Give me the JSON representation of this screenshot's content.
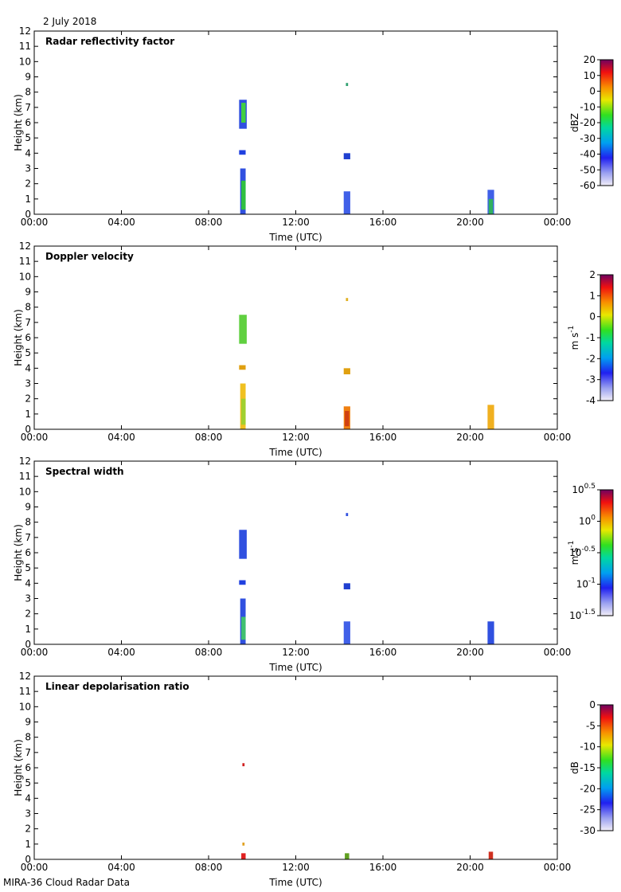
{
  "date_label": "2 July 2018",
  "footer_label": "MIRA-36 Cloud Radar Data",
  "chart_data": [
    {
      "type": "heatmap",
      "title": "Radar reflectivity factor",
      "xlabel": "Time (UTC)",
      "ylabel": "Height (km)",
      "xlim": [
        0,
        24
      ],
      "ylim": [
        0,
        12
      ],
      "x_tick_labels": [
        "00:00",
        "04:00",
        "08:00",
        "12:00",
        "16:00",
        "20:00",
        "00:00"
      ],
      "y_ticks": [
        0,
        1,
        2,
        3,
        4,
        5,
        6,
        7,
        8,
        9,
        10,
        11,
        12
      ],
      "colorbar": {
        "label": "dBZ",
        "ticks": [
          "20",
          "10",
          "0",
          "-10",
          "-20",
          "-30",
          "-40",
          "-50",
          "-60"
        ],
        "range": [
          -60,
          20
        ]
      },
      "echoes": [
        {
          "t": [
            9.45,
            9.7
          ],
          "h": [
            0.0,
            3.0
          ],
          "color": "#3050e0"
        },
        {
          "t": [
            9.5,
            9.7
          ],
          "h": [
            0.3,
            2.2
          ],
          "color": "#30c040"
        },
        {
          "t": [
            9.4,
            9.7
          ],
          "h": [
            3.9,
            4.2
          ],
          "color": "#2040e0"
        },
        {
          "t": [
            9.4,
            9.75
          ],
          "h": [
            5.6,
            7.5
          ],
          "color": "#3050e0"
        },
        {
          "t": [
            9.5,
            9.7
          ],
          "h": [
            6.0,
            7.3
          ],
          "color": "#40d040"
        },
        {
          "t": [
            14.2,
            14.5
          ],
          "h": [
            0.0,
            1.5
          ],
          "color": "#4060e8"
        },
        {
          "t": [
            14.2,
            14.5
          ],
          "h": [
            3.6,
            4.0
          ],
          "color": "#2040d0"
        },
        {
          "t": [
            14.3,
            14.4
          ],
          "h": [
            8.4,
            8.6
          ],
          "color": "#30a070"
        },
        {
          "t": [
            20.8,
            21.1
          ],
          "h": [
            0.0,
            1.6
          ],
          "color": "#4060e8"
        },
        {
          "t": [
            20.85,
            21.05
          ],
          "h": [
            0.0,
            1.0
          ],
          "color": "#30b060"
        }
      ]
    },
    {
      "type": "heatmap",
      "title": "Doppler velocity",
      "xlabel": "Time (UTC)",
      "ylabel": "Height (km)",
      "xlim": [
        0,
        24
      ],
      "ylim": [
        0,
        12
      ],
      "x_tick_labels": [
        "00:00",
        "04:00",
        "08:00",
        "12:00",
        "16:00",
        "20:00",
        "00:00"
      ],
      "y_ticks": [
        0,
        1,
        2,
        3,
        4,
        5,
        6,
        7,
        8,
        9,
        10,
        11,
        12
      ],
      "colorbar": {
        "label": "m s",
        "label_sup": "-1",
        "ticks": [
          "2",
          "1",
          "0",
          "-1",
          "-2",
          "-3",
          "-4"
        ],
        "range": [
          -4,
          2
        ]
      },
      "echoes": [
        {
          "t": [
            9.45,
            9.7
          ],
          "h": [
            0.0,
            3.0
          ],
          "color": "#f0c020"
        },
        {
          "t": [
            9.5,
            9.7
          ],
          "h": [
            0.3,
            2.0
          ],
          "color": "#a0d030"
        },
        {
          "t": [
            9.4,
            9.7
          ],
          "h": [
            3.9,
            4.2
          ],
          "color": "#e0a010"
        },
        {
          "t": [
            9.4,
            9.75
          ],
          "h": [
            5.6,
            7.5
          ],
          "color": "#60d040"
        },
        {
          "t": [
            14.2,
            14.5
          ],
          "h": [
            0.0,
            1.5
          ],
          "color": "#f08010"
        },
        {
          "t": [
            14.25,
            14.45
          ],
          "h": [
            0.2,
            1.2
          ],
          "color": "#d04010"
        },
        {
          "t": [
            14.2,
            14.5
          ],
          "h": [
            3.6,
            4.0
          ],
          "color": "#e0a010"
        },
        {
          "t": [
            14.3,
            14.4
          ],
          "h": [
            8.4,
            8.6
          ],
          "color": "#e0b020"
        },
        {
          "t": [
            20.8,
            21.1
          ],
          "h": [
            0.0,
            1.6
          ],
          "color": "#f0b020"
        }
      ]
    },
    {
      "type": "heatmap",
      "title": "Spectral width",
      "xlabel": "Time (UTC)",
      "ylabel": "Height (km)",
      "xlim": [
        0,
        24
      ],
      "ylim": [
        0,
        12
      ],
      "x_tick_labels": [
        "00:00",
        "04:00",
        "08:00",
        "12:00",
        "16:00",
        "20:00",
        "00:00"
      ],
      "y_ticks": [
        0,
        1,
        2,
        3,
        4,
        5,
        6,
        7,
        8,
        9,
        10,
        11,
        12
      ],
      "colorbar": {
        "label": "m s",
        "label_sup": "-1",
        "ticks": [
          {
            "base": "10",
            "exp": "0.5"
          },
          {
            "base": "10",
            "exp": "0"
          },
          {
            "base": "10",
            "exp": "-0.5"
          },
          {
            "base": "10",
            "exp": "-1"
          },
          {
            "base": "10",
            "exp": "-1.5"
          }
        ],
        "range": [
          -1.5,
          0.5
        ]
      },
      "echoes": [
        {
          "t": [
            9.45,
            9.7
          ],
          "h": [
            0.0,
            3.0
          ],
          "color": "#3050e0"
        },
        {
          "t": [
            9.5,
            9.7
          ],
          "h": [
            0.3,
            1.8
          ],
          "color": "#40c070"
        },
        {
          "t": [
            9.4,
            9.7
          ],
          "h": [
            3.9,
            4.2
          ],
          "color": "#2040e0"
        },
        {
          "t": [
            9.4,
            9.75
          ],
          "h": [
            5.6,
            7.5
          ],
          "color": "#3050e0"
        },
        {
          "t": [
            14.2,
            14.5
          ],
          "h": [
            0.0,
            1.5
          ],
          "color": "#4060e8"
        },
        {
          "t": [
            14.2,
            14.5
          ],
          "h": [
            3.6,
            4.0
          ],
          "color": "#2040d0"
        },
        {
          "t": [
            14.3,
            14.4
          ],
          "h": [
            8.4,
            8.6
          ],
          "color": "#3050e0"
        },
        {
          "t": [
            20.8,
            21.1
          ],
          "h": [
            0.0,
            1.5
          ],
          "color": "#3050e0"
        }
      ]
    },
    {
      "type": "heatmap",
      "title": "Linear depolarisation ratio",
      "xlabel": "Time (UTC)",
      "ylabel": "Height (km)",
      "xlim": [
        0,
        24
      ],
      "ylim": [
        0,
        12
      ],
      "x_tick_labels": [
        "00:00",
        "04:00",
        "08:00",
        "12:00",
        "16:00",
        "20:00",
        "00:00"
      ],
      "y_ticks": [
        0,
        1,
        2,
        3,
        4,
        5,
        6,
        7,
        8,
        9,
        10,
        11,
        12
      ],
      "colorbar": {
        "label": "dB",
        "ticks": [
          "0",
          "-5",
          "-10",
          "-15",
          "-20",
          "-25",
          "-30"
        ],
        "range": [
          -30,
          0
        ]
      },
      "echoes": [
        {
          "t": [
            9.5,
            9.7
          ],
          "h": [
            0.0,
            0.4
          ],
          "color": "#e02020"
        },
        {
          "t": [
            9.55,
            9.65
          ],
          "h": [
            0.9,
            1.1
          ],
          "color": "#e0a020"
        },
        {
          "t": [
            9.55,
            9.65
          ],
          "h": [
            6.1,
            6.3
          ],
          "color": "#d02020"
        },
        {
          "t": [
            14.25,
            14.45
          ],
          "h": [
            0.0,
            0.4
          ],
          "color": "#60a020"
        },
        {
          "t": [
            20.85,
            21.05
          ],
          "h": [
            0.0,
            0.5
          ],
          "color": "#d03020"
        }
      ]
    }
  ]
}
